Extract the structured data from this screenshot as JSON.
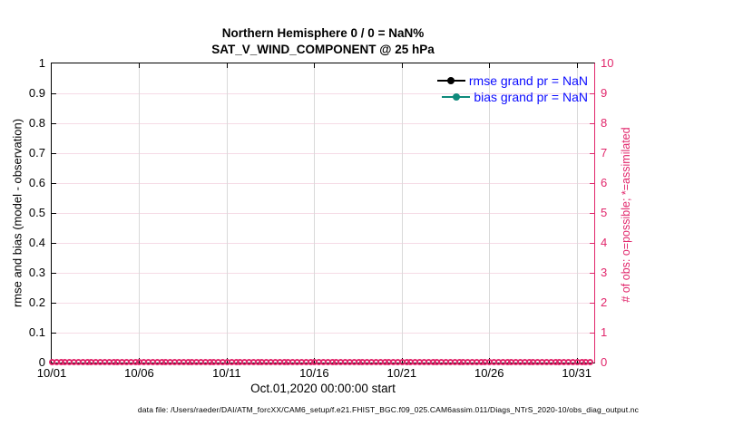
{
  "figure": {
    "title": "Northern Hemisphere 0 / 0 = NaN%",
    "subtitle": "SAT_V_WIND_COMPONENT @ 25 hPa",
    "xlabel": "Oct.01,2020 00:00:00 start",
    "ylabel_left": "rmse and bias (model - observation)",
    "ylabel_right": "# of obs: o=possible; *=assimilated",
    "caption": "data file: /Users/raeder/DAI/ATM_forcXX/CAM6_setup/f.e21.FHIST_BGC.f09_025.CAM6assim.011/Diags_NTrS_2020-10/obs_diag_output.nc",
    "legend": [
      {
        "label": "rmse grand pr = NaN",
        "color": "#000000",
        "marker": "filled-circle"
      },
      {
        "label": "bias grand pr = NaN",
        "color": "#108a7c",
        "marker": "filled-circle"
      }
    ],
    "colors": {
      "left_axis": "#000000",
      "right_axis_accent": "#e1266b",
      "horizontal_grid": "#f6dbe6",
      "vertical_grid": "#d9d9d9",
      "legend_text": "#0b0bff",
      "bias_teal": "#108a7c",
      "obs_marker_pink": "#e1266b"
    }
  },
  "chart_data": {
    "type": "line",
    "title": "Northern Hemisphere 0 / 0 = NaN%",
    "subtitle": "SAT_V_WIND_COMPONENT @ 25 hPa",
    "xlabel": "Oct.01,2020 00:00:00 start",
    "ylabel_left": "rmse and bias (model - observation)",
    "ylabel_right": "# of obs: o=possible; *=assimilated",
    "grid": true,
    "legend_position": "upper-right-inside",
    "x_axis": {
      "tick_labels": [
        "10/01",
        "10/06",
        "10/11",
        "10/16",
        "10/21",
        "10/26",
        "10/31"
      ],
      "tick_spacing_days": 5,
      "range_days": 31,
      "start": "10/01"
    },
    "y_left": {
      "lim": [
        0,
        1
      ],
      "tick_labels": [
        "0",
        "0.1",
        "0.2",
        "0.3",
        "0.4",
        "0.5",
        "0.6",
        "0.7",
        "0.8",
        "0.9",
        "1"
      ]
    },
    "y_right": {
      "lim": [
        0,
        10
      ],
      "tick_labels": [
        "0",
        "1",
        "2",
        "3",
        "4",
        "5",
        "6",
        "7",
        "8",
        "9",
        "10"
      ]
    },
    "series": [
      {
        "name": "rmse grand pr = NaN",
        "axis": "left",
        "color": "#000000",
        "values": "NaN"
      },
      {
        "name": "bias grand pr = NaN",
        "axis": "left",
        "color": "#108a7c",
        "values": "NaN"
      },
      {
        "name": "# of obs possible (o markers)",
        "axis": "right",
        "color": "#e1266b",
        "constant_value": 0,
        "n_points": 124
      },
      {
        "name": "# of obs assimilated (* markers)",
        "axis": "right",
        "color": "#e1266b",
        "constant_value": 0,
        "n_points": 124
      }
    ]
  }
}
